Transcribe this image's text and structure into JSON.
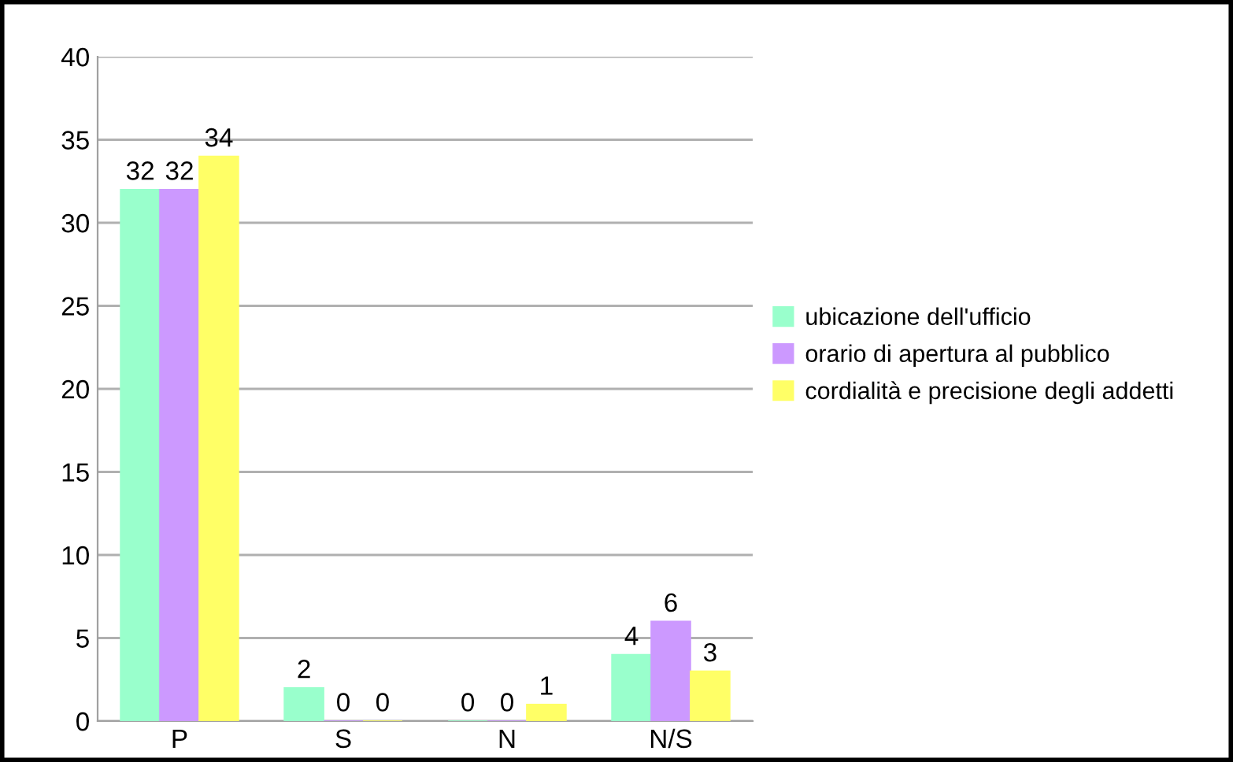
{
  "chart_data": {
    "type": "bar",
    "categories": [
      "P",
      "S",
      "N",
      "N/S"
    ],
    "series": [
      {
        "name": "ubicazione dell'ufficio",
        "color": "#99ffcc",
        "values": [
          32,
          2,
          0,
          4
        ]
      },
      {
        "name": "orario di apertura al pubblico",
        "color": "#cc99ff",
        "values": [
          32,
          0,
          0,
          6
        ]
      },
      {
        "name": "cordialità e precisione degli addetti",
        "color": "#ffff66",
        "values": [
          34,
          0,
          1,
          3
        ]
      }
    ],
    "ylim": [
      0,
      40
    ],
    "yticks": [
      0,
      5,
      10,
      15,
      20,
      25,
      30,
      35,
      40
    ],
    "grid": "y",
    "legend": "right",
    "data_labels": true
  }
}
